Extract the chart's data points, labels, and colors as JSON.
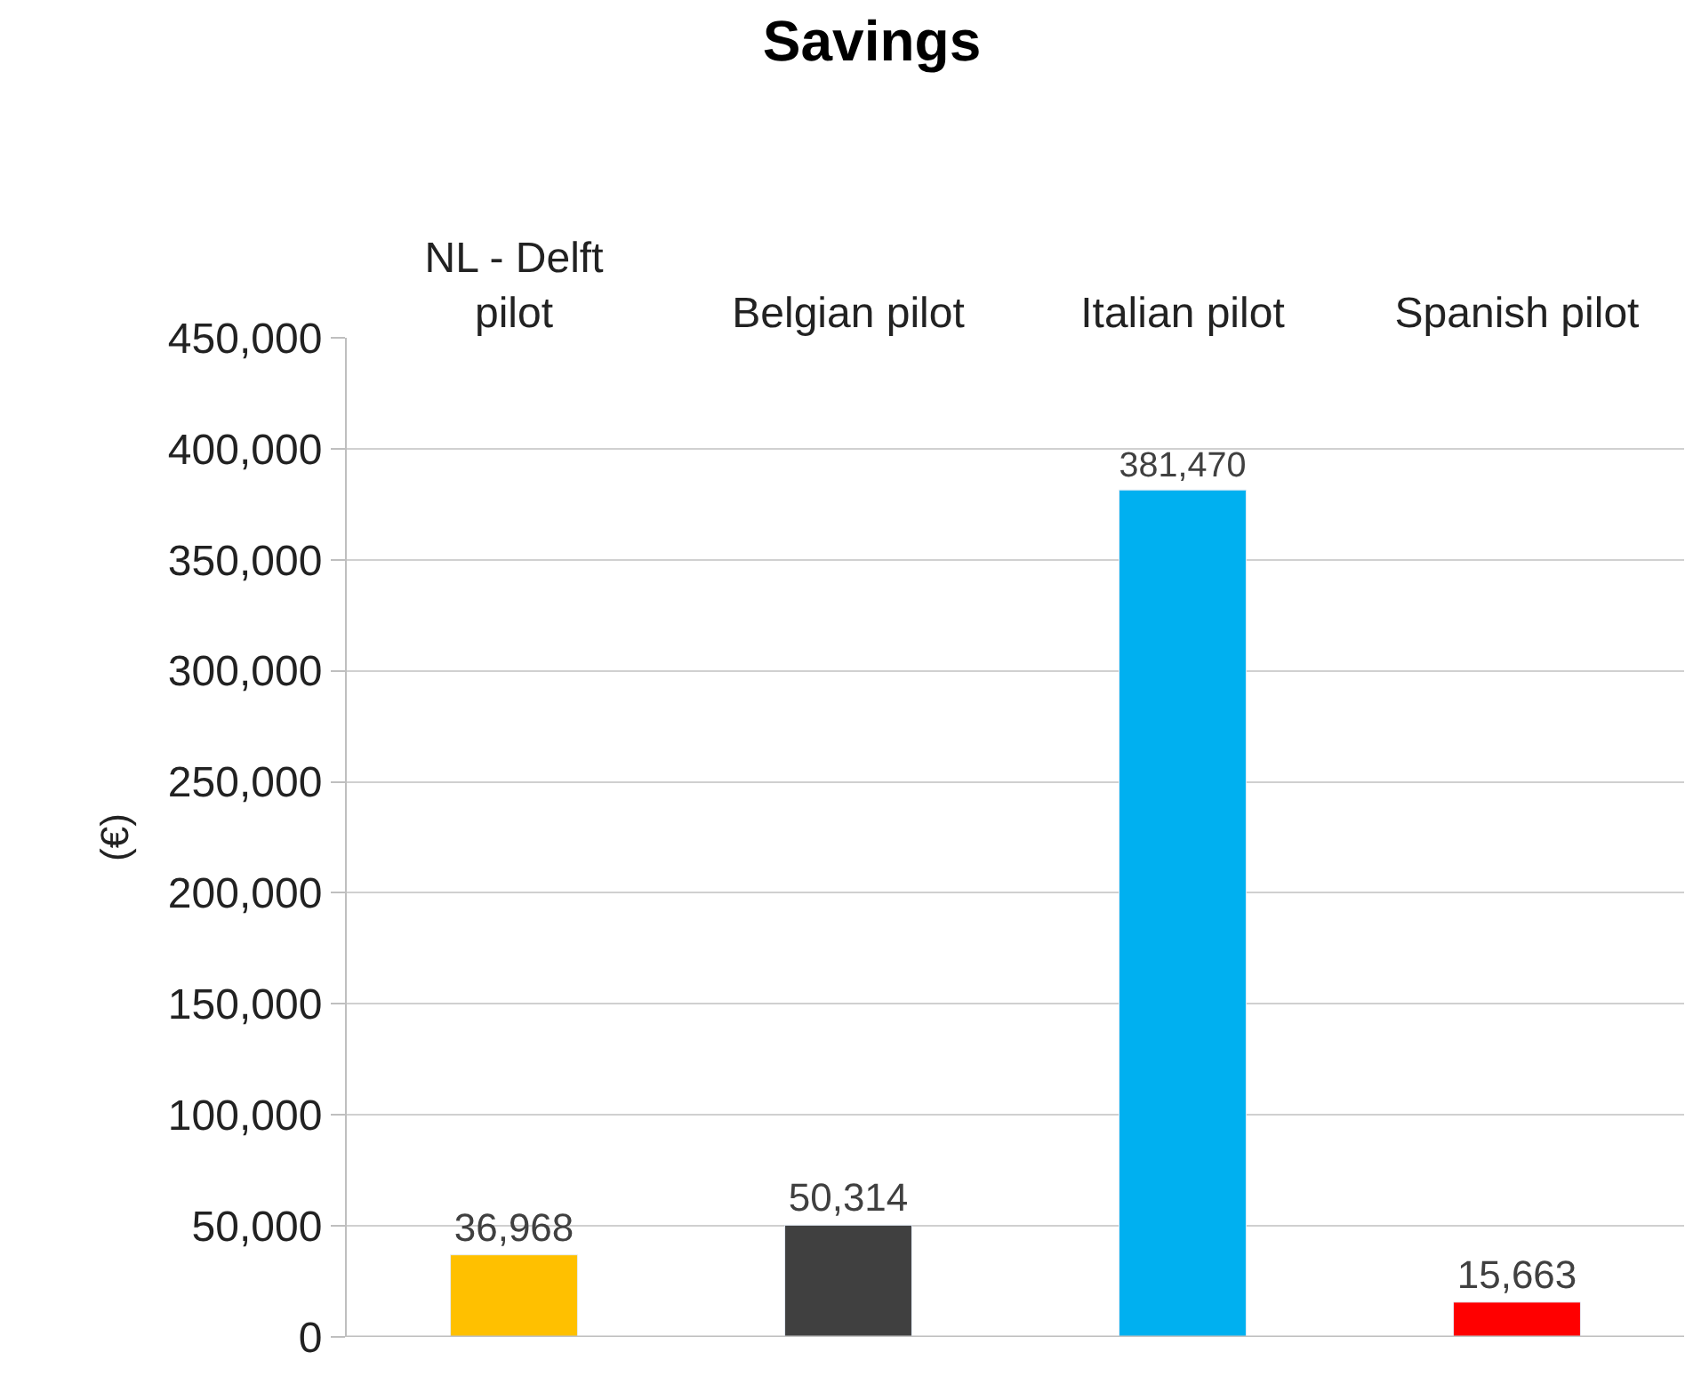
{
  "chart_data": {
    "type": "bar",
    "title": "Savings",
    "ylabel": "(€)",
    "categories": [
      "NL - Delft\npilot",
      "Belgian pilot",
      "Italian pilot",
      "Spanish pilot"
    ],
    "values": [
      36968,
      50314,
      381470,
      15663
    ],
    "colors": [
      "#ffc000",
      "#404040",
      "#00b0f0",
      "#ff0000"
    ],
    "value_labels": [
      "36,968",
      "50,314",
      "381,470",
      "15,663"
    ],
    "ylim": [
      0,
      450000
    ],
    "yticks": [
      {
        "value": 0,
        "label": "0"
      },
      {
        "value": 50000,
        "label": "50,000"
      },
      {
        "value": 100000,
        "label": "100,000"
      },
      {
        "value": 150000,
        "label": "150,000"
      },
      {
        "value": 200000,
        "label": "200,000"
      },
      {
        "value": 250000,
        "label": "250,000"
      },
      {
        "value": 300000,
        "label": "300,000"
      },
      {
        "value": 350000,
        "label": "350,000"
      },
      {
        "value": 400000,
        "label": "400,000"
      },
      {
        "value": 450000,
        "label": "450,000"
      }
    ],
    "grid": "y",
    "legend": false
  }
}
